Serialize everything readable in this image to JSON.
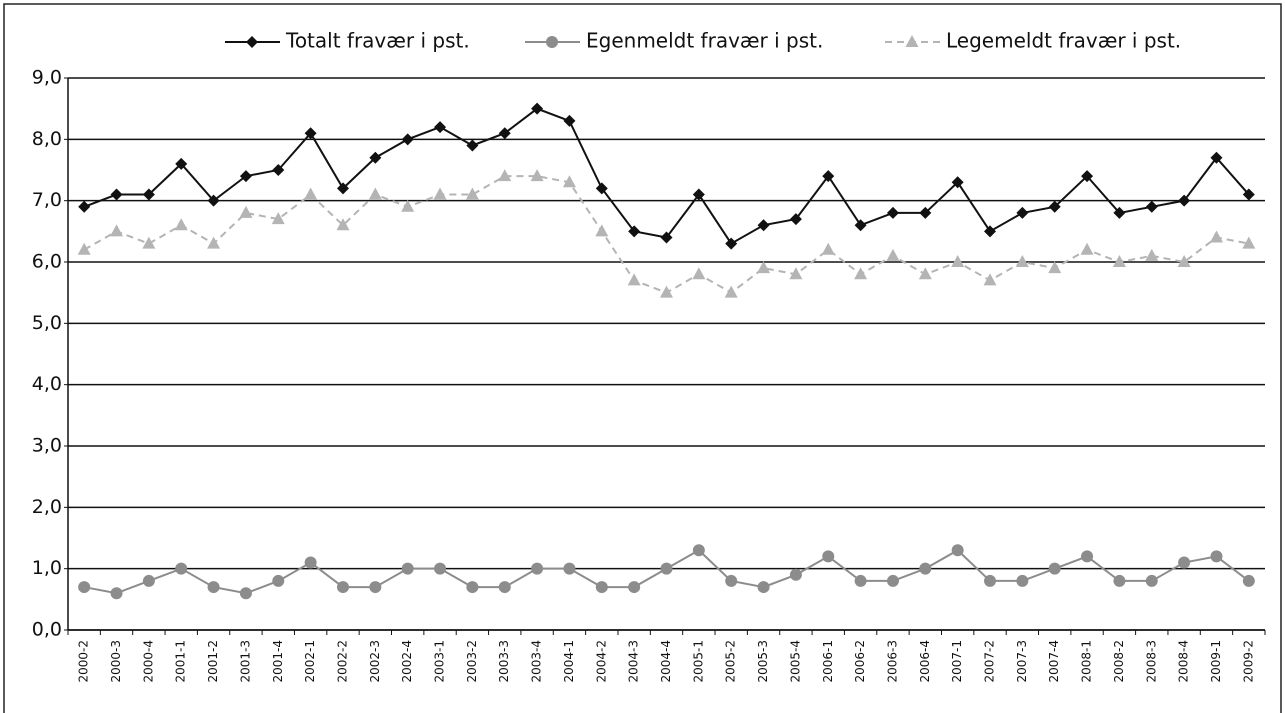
{
  "chart_data": {
    "type": "line",
    "categories": [
      "2000-2",
      "2000-3",
      "2000-4",
      "2001-1",
      "2001-2",
      "2001-3",
      "2001-4",
      "2002-1",
      "2002-2",
      "2002-3",
      "2002-4",
      "2003-1",
      "2003-2",
      "2003-3",
      "2003-4",
      "2004-1",
      "2004-2",
      "2004-3",
      "2004-4",
      "2005-1",
      "2005-2",
      "2005-3",
      "2005-4",
      "2006-1",
      "2006-2",
      "2006-3",
      "2006-4",
      "2007-1",
      "2007-2",
      "2007-3",
      "2007-4",
      "2008-1",
      "2008-2",
      "2008-3",
      "2008-4",
      "2009-1",
      "2009-2"
    ],
    "series": [
      {
        "name": "Totalt fravær i pst.",
        "color": "#111111",
        "marker": "diamond",
        "dashed": false,
        "values": [
          6.9,
          7.1,
          7.1,
          7.6,
          7.0,
          7.4,
          7.5,
          8.1,
          7.2,
          7.7,
          8.0,
          8.2,
          7.9,
          8.1,
          8.5,
          8.3,
          7.2,
          6.5,
          6.4,
          7.1,
          6.3,
          6.6,
          6.7,
          7.4,
          6.6,
          6.8,
          6.8,
          7.3,
          6.5,
          6.8,
          6.9,
          7.4,
          6.8,
          6.9,
          7.0,
          7.7,
          7.1
        ]
      },
      {
        "name": "Egenmeldt fravær i pst.",
        "color": "#8c8c8c",
        "marker": "circle",
        "dashed": false,
        "values": [
          0.7,
          0.6,
          0.8,
          1.0,
          0.7,
          0.6,
          0.8,
          1.1,
          0.7,
          0.7,
          1.0,
          1.0,
          0.7,
          0.7,
          1.0,
          1.0,
          0.7,
          0.7,
          1.0,
          1.3,
          0.8,
          0.7,
          0.9,
          1.2,
          0.8,
          0.8,
          1.0,
          1.3,
          0.8,
          0.8,
          1.0,
          1.2,
          0.8,
          0.8,
          1.1,
          1.2,
          0.8
        ]
      },
      {
        "name": "Legemeldt fravær i pst.",
        "color": "#b4b4b4",
        "marker": "triangle",
        "dashed": true,
        "values": [
          6.2,
          6.5,
          6.3,
          6.6,
          6.3,
          6.8,
          6.7,
          7.1,
          6.6,
          7.1,
          6.9,
          7.1,
          7.1,
          7.4,
          7.4,
          7.3,
          6.5,
          5.7,
          5.5,
          5.8,
          5.5,
          5.9,
          5.8,
          6.2,
          5.8,
          6.1,
          5.8,
          6.0,
          5.7,
          6.0,
          5.9,
          6.2,
          6.0,
          6.1,
          6.0,
          6.4,
          6.3
        ]
      }
    ],
    "ylim": [
      0,
      9
    ],
    "yticks": [
      {
        "value": 0,
        "label": "0,0"
      },
      {
        "value": 1,
        "label": "1,0"
      },
      {
        "value": 2,
        "label": "2,0"
      },
      {
        "value": 3,
        "label": "3,0"
      },
      {
        "value": 4,
        "label": "4,0"
      },
      {
        "value": 5,
        "label": "5,0"
      },
      {
        "value": 6,
        "label": "6,0"
      },
      {
        "value": 7,
        "label": "7,0"
      },
      {
        "value": 8,
        "label": "8,0"
      },
      {
        "value": 9,
        "label": "9,0"
      }
    ],
    "grid": true,
    "legend": "top"
  }
}
